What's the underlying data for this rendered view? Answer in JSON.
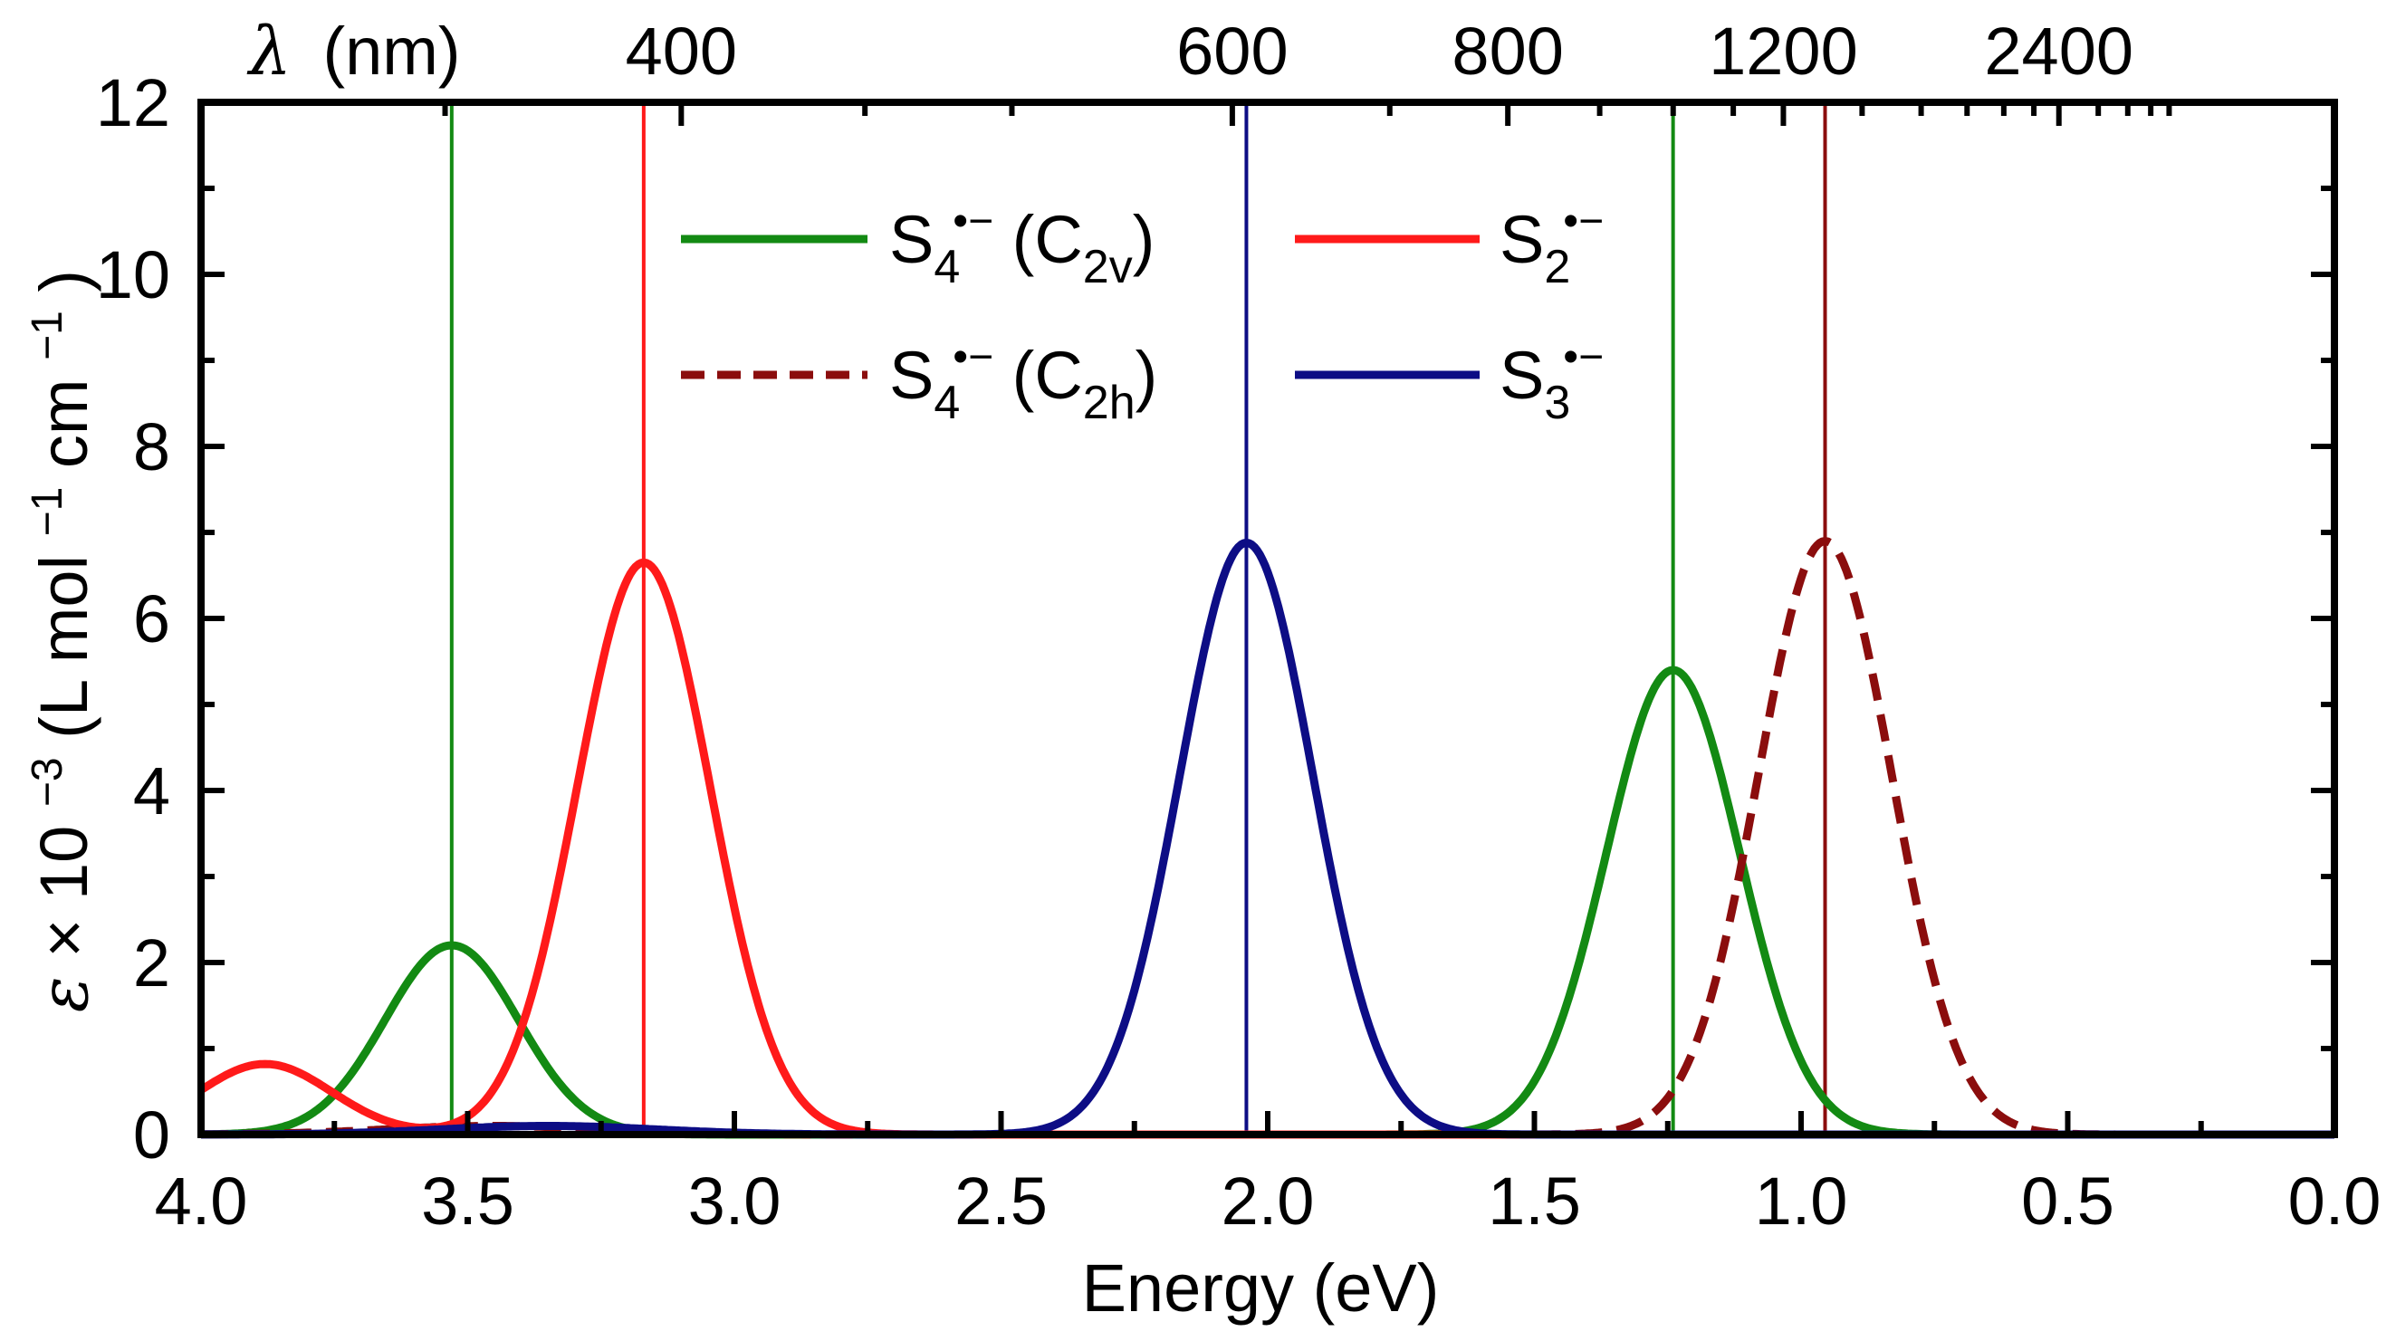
{
  "chart_data": {
    "type": "line",
    "xlabel": "Energy (eV)",
    "ylabel": {
      "symbol": "ε",
      "times": "×",
      "base": "10",
      "exponent": "−3",
      "units_open": "(L mol",
      "units_exp1": "−1",
      "units_mid": " cm",
      "units_exp2": "−1",
      "units_close": ")"
    },
    "xlim": [
      4.0,
      0.0
    ],
    "ylim": [
      0,
      12
    ],
    "x_ticks": [
      "4.0",
      "3.5",
      "3.0",
      "2.5",
      "2.0",
      "1.5",
      "1.0",
      "0.5",
      "0.0"
    ],
    "y_ticks": [
      "0",
      "2",
      "4",
      "6",
      "8",
      "10",
      "12"
    ],
    "top_axis": {
      "title": {
        "symbol": "λ",
        "text": "(nm)"
      },
      "labels": [
        {
          "nm": 400,
          "label": "400"
        },
        {
          "nm": 600,
          "label": "600"
        },
        {
          "nm": 800,
          "label": "800"
        },
        {
          "nm": 1200,
          "label": "1200"
        },
        {
          "nm": 2400,
          "label": "2400"
        }
      ],
      "minor_nm": [
        300,
        350,
        450,
        500,
        700,
        900,
        1000,
        1100,
        1400,
        1600,
        1800,
        2000,
        2200,
        2800,
        3200,
        3600,
        4000
      ]
    },
    "series": [
      {
        "name": "S4•− (C2v)",
        "color": "#138a13",
        "dash": "solid",
        "peaks": [
          {
            "center_eV": 3.53,
            "height": 2.2,
            "sigma": 0.125
          },
          {
            "center_eV": 1.24,
            "height": 5.4,
            "sigma": 0.125
          }
        ],
        "stick_lines_eV": [
          3.53,
          1.24
        ]
      },
      {
        "name": "S4•− (C2h)",
        "color": "#8b0d0d",
        "dash": "dashed",
        "peaks": [
          {
            "center_eV": 0.955,
            "height": 6.9,
            "sigma": 0.125
          },
          {
            "center_eV": 3.45,
            "height": 0.1,
            "sigma": 0.2
          }
        ],
        "stick_lines_eV": [
          0.955
        ]
      },
      {
        "name": "S2•−",
        "color": "#ff1a1a",
        "dash": "solid",
        "peaks": [
          {
            "center_eV": 3.17,
            "height": 6.65,
            "sigma": 0.125
          },
          {
            "center_eV": 3.88,
            "height": 0.82,
            "sigma": 0.125
          }
        ],
        "stick_lines_eV": [
          3.17
        ]
      },
      {
        "name": "S3•−",
        "color": "#0d0d85",
        "dash": "solid",
        "peaks": [
          {
            "center_eV": 2.04,
            "height": 6.88,
            "sigma": 0.125
          },
          {
            "center_eV": 3.35,
            "height": 0.1,
            "sigma": 0.2
          }
        ],
        "stick_lines_eV": [
          2.04
        ]
      }
    ],
    "legend": {
      "placement": "top-center",
      "entries": [
        {
          "base": "S",
          "sub": "4",
          "sup": "•−",
          "suffix": " (C",
          "suffix_sub": "2v",
          "suffix_end": ")"
        },
        {
          "base": "S",
          "sub": "2",
          "sup": "•−",
          "suffix": "",
          "suffix_sub": "",
          "suffix_end": ""
        },
        {
          "base": "S",
          "sub": "4",
          "sup": "•−",
          "suffix": " (C",
          "suffix_sub": "2h",
          "suffix_end": ")"
        },
        {
          "base": "S",
          "sub": "3",
          "sup": "•−",
          "suffix": "",
          "suffix_sub": "",
          "suffix_end": ""
        }
      ]
    }
  }
}
